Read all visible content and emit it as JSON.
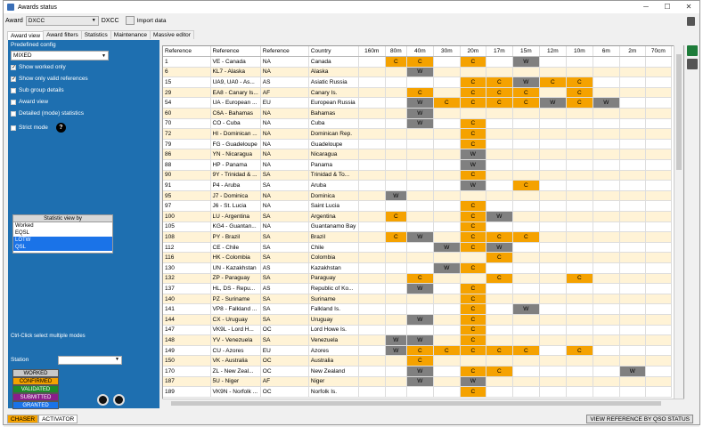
{
  "window": {
    "title": "Awards status",
    "minimize": "─",
    "maximize": "☐",
    "close": "✕"
  },
  "toolbar": {
    "award_label": "Award",
    "award_value": "DXCC",
    "award_short": "DXCC",
    "import_label": "Import data"
  },
  "tabs": [
    "Award view",
    "Award filters",
    "Statistics",
    "Maintenance",
    "Massive editor"
  ],
  "left": {
    "predefined_label": "Predefined config",
    "predefined_value": "MIXED",
    "checks": [
      {
        "label": "Show worked only",
        "checked": true
      },
      {
        "label": "Show only valid references",
        "checked": true
      },
      {
        "label": "Sub group details",
        "checked": false
      },
      {
        "label": "Award view",
        "checked": false
      },
      {
        "label": "Detailed (mode) statistics",
        "checked": false
      },
      {
        "label": "Strict mode",
        "checked": false
      }
    ],
    "help": "?",
    "stat_header": "Statistic view by",
    "stat_items": [
      "Worked",
      "EQSL",
      "LOTW",
      "QSL"
    ],
    "stat_selected": [
      2,
      3
    ],
    "ctrl_hint": "Ctrl-Click select multiple modes",
    "station_label": "Station",
    "legend": [
      {
        "label": "WORKED",
        "bg": "#c8c8c8",
        "fg": "#000"
      },
      {
        "label": "CONFIRMED",
        "bg": "#f5a200",
        "fg": "#000"
      },
      {
        "label": "VALIDATED",
        "bg": "#1e8c2a",
        "fg": "#fff"
      },
      {
        "label": "SUBMITTED",
        "bg": "#8a1e8a",
        "fg": "#fff"
      },
      {
        "label": "GRANTED",
        "bg": "#1a73e8",
        "fg": "#fff"
      }
    ]
  },
  "grid": {
    "headers": [
      "Reference",
      "Reference",
      "Reference",
      "Country",
      "160m",
      "80m",
      "40m",
      "30m",
      "20m",
      "17m",
      "15m",
      "12m",
      "10m",
      "6m",
      "2m",
      "70cm"
    ],
    "rows": [
      [
        "1",
        "VE - Canada",
        "NA",
        "Canada",
        "",
        "C",
        "C",
        "",
        "C",
        "",
        "W",
        "",
        "",
        "",
        "",
        ""
      ],
      [
        "6",
        "KL7 - Alaska",
        "NA",
        "Alaska",
        "",
        "",
        "W",
        "",
        "",
        "",
        "",
        "",
        "",
        "",
        "",
        ""
      ],
      [
        "15",
        "UA9, UA0 - As...",
        "AS",
        "Asiatic Russia",
        "",
        "",
        "",
        "",
        "C",
        "C",
        "W",
        "C",
        "C",
        "",
        "",
        ""
      ],
      [
        "29",
        "EA8 - Canary Is...",
        "AF",
        "Canary Is.",
        "",
        "",
        "C",
        "",
        "C",
        "C",
        "C",
        "",
        "C",
        "",
        "",
        ""
      ],
      [
        "54",
        "UA - European ...",
        "EU",
        "European Russia",
        "",
        "",
        "W",
        "C",
        "C",
        "C",
        "C",
        "W",
        "C",
        "W",
        "",
        ""
      ],
      [
        "60",
        "C6A - Bahamas",
        "NA",
        "Bahamas",
        "",
        "",
        "W",
        "",
        "",
        "",
        "",
        "",
        "",
        "",
        "",
        ""
      ],
      [
        "70",
        "CO - Cuba",
        "NA",
        "Cuba",
        "",
        "",
        "W",
        "",
        "C",
        "",
        "",
        "",
        "",
        "",
        "",
        ""
      ],
      [
        "72",
        "HI - Dominican ...",
        "NA",
        "Dominican Rep.",
        "",
        "",
        "",
        "",
        "C",
        "",
        "",
        "",
        "",
        "",
        "",
        ""
      ],
      [
        "79",
        "FG - Guadeloupe",
        "NA",
        "Guadeloupe",
        "",
        "",
        "",
        "",
        "C",
        "",
        "",
        "",
        "",
        "",
        "",
        ""
      ],
      [
        "86",
        "YN - Nicaragua",
        "NA",
        "Nicaragua",
        "",
        "",
        "",
        "",
        "W",
        "",
        "",
        "",
        "",
        "",
        "",
        ""
      ],
      [
        "88",
        "HP - Panama",
        "NA",
        "Panama",
        "",
        "",
        "",
        "",
        "W",
        "",
        "",
        "",
        "",
        "",
        "",
        ""
      ],
      [
        "90",
        "9Y - Trinidad & ...",
        "SA",
        "Trinidad & To...",
        "",
        "",
        "",
        "",
        "C",
        "",
        "",
        "",
        "",
        "",
        "",
        ""
      ],
      [
        "91",
        "P4 - Aruba",
        "SA",
        "Aruba",
        "",
        "",
        "",
        "",
        "W",
        "",
        "C",
        "",
        "",
        "",
        "",
        ""
      ],
      [
        "95",
        "J7 - Dominica",
        "NA",
        "Dominica",
        "",
        "W",
        "",
        "",
        "",
        "",
        "",
        "",
        "",
        "",
        "",
        ""
      ],
      [
        "97",
        "J6 - St. Lucia",
        "NA",
        "Saint Lucia",
        "",
        "",
        "",
        "",
        "C",
        "",
        "",
        "",
        "",
        "",
        "",
        ""
      ],
      [
        "100",
        "LU - Argentina",
        "SA",
        "Argentina",
        "",
        "C",
        "",
        "",
        "C",
        "W",
        "",
        "",
        "",
        "",
        "",
        ""
      ],
      [
        "105",
        "KG4 - Guantan...",
        "NA",
        "Guantanamo Bay",
        "",
        "",
        "",
        "",
        "C",
        "",
        "",
        "",
        "",
        "",
        "",
        ""
      ],
      [
        "108",
        "PY - Brazil",
        "SA",
        "Brazil",
        "",
        "C",
        "W",
        "",
        "C",
        "C",
        "C",
        "",
        "",
        "",
        "",
        ""
      ],
      [
        "112",
        "CE - Chile",
        "SA",
        "Chile",
        "",
        "",
        "",
        "W",
        "C",
        "W",
        "",
        "",
        "",
        "",
        "",
        ""
      ],
      [
        "116",
        "HK - Colombia",
        "SA",
        "Colombia",
        "",
        "",
        "",
        "",
        "",
        "C",
        "",
        "",
        "",
        "",
        "",
        ""
      ],
      [
        "130",
        "UN - Kazakhstan",
        "AS",
        "Kazakhstan",
        "",
        "",
        "",
        "W",
        "C",
        "",
        "",
        "",
        "",
        "",
        "",
        ""
      ],
      [
        "132",
        "ZP - Paraguay",
        "SA",
        "Paraguay",
        "",
        "",
        "C",
        "",
        "",
        "C",
        "",
        "",
        "C",
        "",
        "",
        ""
      ],
      [
        "137",
        "HL, DS - Repu...",
        "AS",
        "Republic of Ko...",
        "",
        "",
        "W",
        "",
        "C",
        "",
        "",
        "",
        "",
        "",
        "",
        ""
      ],
      [
        "140",
        "PZ - Suriname",
        "SA",
        "Suriname",
        "",
        "",
        "",
        "",
        "C",
        "",
        "",
        "",
        "",
        "",
        "",
        ""
      ],
      [
        "141",
        "VP8 - Falkland ...",
        "SA",
        "Falkland Is.",
        "",
        "",
        "",
        "",
        "C",
        "",
        "W",
        "",
        "",
        "",
        "",
        ""
      ],
      [
        "144",
        "CX - Uruguay",
        "SA",
        "Uruguay",
        "",
        "",
        "W",
        "",
        "C",
        "",
        "",
        "",
        "",
        "",
        "",
        ""
      ],
      [
        "147",
        "VK9L - Lord H...",
        "OC",
        "Lord Howe Is.",
        "",
        "",
        "",
        "",
        "C",
        "",
        "",
        "",
        "",
        "",
        "",
        ""
      ],
      [
        "148",
        "YV - Venezuela",
        "SA",
        "Venezuela",
        "",
        "W",
        "W",
        "",
        "C",
        "",
        "",
        "",
        "",
        "",
        "",
        ""
      ],
      [
        "149",
        "CU - Azores",
        "EU",
        "Azores",
        "",
        "W",
        "C",
        "C",
        "C",
        "C",
        "C",
        "",
        "C",
        "",
        "",
        ""
      ],
      [
        "150",
        "VK - Australia",
        "OC",
        "Australia",
        "",
        "",
        "C",
        "",
        "",
        "",
        "",
        "",
        "",
        "",
        "",
        ""
      ],
      [
        "170",
        "ZL - New Zeal...",
        "OC",
        "New Zealand",
        "",
        "",
        "W",
        "",
        "C",
        "C",
        "",
        "",
        "",
        "",
        "W",
        ""
      ],
      [
        "187",
        "5U - Niger",
        "AF",
        "Niger",
        "",
        "",
        "W",
        "",
        "W",
        "",
        "",
        "",
        "",
        "",
        "",
        ""
      ],
      [
        "189",
        "VK9N - Norfolk ...",
        "OC",
        "Norfolk Is.",
        "",
        "",
        "",
        "",
        "C",
        "",
        "",
        "",
        "",
        "",
        "",
        ""
      ]
    ]
  },
  "bottom": {
    "tabs": [
      "CHASER",
      "ACTIVATOR"
    ],
    "right_button": "VIEW REFERENCE BY QSO STATUS"
  }
}
